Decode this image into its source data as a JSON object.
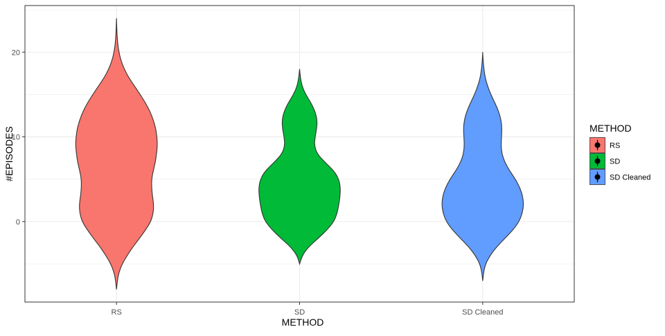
{
  "chart_data": {
    "type": "violin",
    "xlabel": "METHOD",
    "ylabel": "#EPISODES",
    "categories": [
      "RS",
      "SD",
      "SD Cleaned"
    ],
    "ylim": [
      -9.5,
      25.5
    ],
    "yticks": [
      0,
      10,
      20
    ],
    "grid": true,
    "legend": {
      "title": "METHOD",
      "placement": "right",
      "entries": [
        "RS",
        "SD",
        "SD Cleaned"
      ]
    },
    "colors": [
      "#F8766D",
      "#00BA38",
      "#619CFF"
    ],
    "series": [
      {
        "name": "RS",
        "min": -8,
        "max": 24,
        "profile": [
          [
            -8,
            0.0
          ],
          [
            -7,
            0.02
          ],
          [
            -6,
            0.06
          ],
          [
            -5,
            0.14
          ],
          [
            -4,
            0.26
          ],
          [
            -3,
            0.4
          ],
          [
            -2,
            0.56
          ],
          [
            -1,
            0.71
          ],
          [
            0,
            0.84
          ],
          [
            1,
            0.9
          ],
          [
            2,
            0.91
          ],
          [
            3,
            0.88
          ],
          [
            4,
            0.86
          ],
          [
            5,
            0.86
          ],
          [
            6,
            0.9
          ],
          [
            7,
            0.95
          ],
          [
            8,
            0.98
          ],
          [
            9,
            1.0
          ],
          [
            10,
            0.99
          ],
          [
            11,
            0.96
          ],
          [
            12,
            0.9
          ],
          [
            13,
            0.82
          ],
          [
            14,
            0.71
          ],
          [
            15,
            0.58
          ],
          [
            16,
            0.44
          ],
          [
            17,
            0.3
          ],
          [
            18,
            0.19
          ],
          [
            19,
            0.11
          ],
          [
            20,
            0.06
          ],
          [
            21,
            0.03
          ],
          [
            22,
            0.015
          ],
          [
            23,
            0.006
          ],
          [
            24,
            0.0
          ]
        ]
      },
      {
        "name": "SD",
        "min": -5,
        "max": 18,
        "profile": [
          [
            -5,
            0.0
          ],
          [
            -4,
            0.06
          ],
          [
            -3,
            0.22
          ],
          [
            -2,
            0.45
          ],
          [
            -1,
            0.67
          ],
          [
            0,
            0.84
          ],
          [
            1,
            0.92
          ],
          [
            2,
            0.96
          ],
          [
            3,
            0.99
          ],
          [
            4,
            1.0
          ],
          [
            5,
            0.96
          ],
          [
            6,
            0.84
          ],
          [
            7,
            0.62
          ],
          [
            8,
            0.43
          ],
          [
            9,
            0.36
          ],
          [
            10,
            0.38
          ],
          [
            11,
            0.42
          ],
          [
            12,
            0.43
          ],
          [
            13,
            0.38
          ],
          [
            14,
            0.28
          ],
          [
            15,
            0.15
          ],
          [
            16,
            0.06
          ],
          [
            17,
            0.02
          ],
          [
            18,
            0.0
          ]
        ]
      },
      {
        "name": "SD Cleaned",
        "min": -7,
        "max": 20,
        "profile": [
          [
            -7,
            0.0
          ],
          [
            -6,
            0.02
          ],
          [
            -5,
            0.07
          ],
          [
            -4,
            0.18
          ],
          [
            -3,
            0.34
          ],
          [
            -2,
            0.54
          ],
          [
            -1,
            0.74
          ],
          [
            0,
            0.89
          ],
          [
            1,
            0.97
          ],
          [
            2,
            1.0
          ],
          [
            3,
            0.98
          ],
          [
            4,
            0.91
          ],
          [
            5,
            0.8
          ],
          [
            6,
            0.66
          ],
          [
            7,
            0.54
          ],
          [
            8,
            0.47
          ],
          [
            9,
            0.45
          ],
          [
            10,
            0.46
          ],
          [
            11,
            0.47
          ],
          [
            12,
            0.45
          ],
          [
            13,
            0.39
          ],
          [
            14,
            0.3
          ],
          [
            15,
            0.2
          ],
          [
            16,
            0.12
          ],
          [
            17,
            0.06
          ],
          [
            18,
            0.03
          ],
          [
            19,
            0.01
          ],
          [
            20,
            0.0
          ]
        ]
      }
    ]
  }
}
